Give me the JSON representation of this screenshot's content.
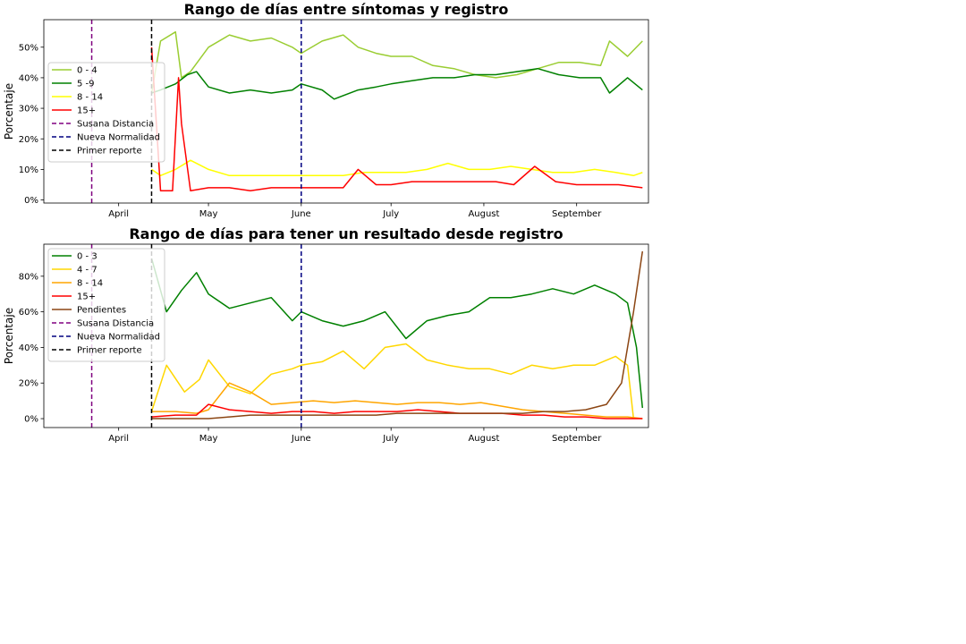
{
  "chart_data": [
    {
      "type": "line",
      "title": "Rango de días entre síntomas y registro",
      "ylabel": "Porcentaje",
      "xlabel": "",
      "x_range": [
        "2020-03-07",
        "2020-09-25"
      ],
      "ylim": [
        -1,
        59
      ],
      "yticks": [
        0,
        10,
        20,
        30,
        40,
        50
      ],
      "ytick_labels": [
        "0%",
        "10%",
        "20%",
        "30%",
        "40%",
        "50%"
      ],
      "xticks": [
        "2020-04-01",
        "2020-05-01",
        "2020-06-01",
        "2020-07-01",
        "2020-08-01",
        "2020-09-01"
      ],
      "xtick_labels": [
        "April",
        "May",
        "June",
        "July",
        "August",
        "September"
      ],
      "legend_position": "upper-left",
      "grid": false,
      "series": [
        {
          "name": "0 - 4",
          "color": "#9acd32",
          "x": [
            "2020-04-12",
            "2020-04-15",
            "2020-04-20",
            "2020-04-22",
            "2020-04-25",
            "2020-05-01",
            "2020-05-08",
            "2020-05-15",
            "2020-05-22",
            "2020-05-29",
            "2020-06-01",
            "2020-06-08",
            "2020-06-15",
            "2020-06-20",
            "2020-06-26",
            "2020-07-01",
            "2020-07-08",
            "2020-07-15",
            "2020-07-22",
            "2020-07-29",
            "2020-08-05",
            "2020-08-12",
            "2020-08-19",
            "2020-08-26",
            "2020-09-02",
            "2020-09-09",
            "2020-09-12",
            "2020-09-18",
            "2020-09-23"
          ],
          "y": [
            35,
            52,
            55,
            40,
            42,
            50,
            54,
            52,
            53,
            50,
            48,
            52,
            54,
            50,
            48,
            47,
            47,
            44,
            43,
            41,
            40,
            41,
            43,
            45,
            45,
            44,
            52,
            47,
            52
          ]
        },
        {
          "name": "5 -9",
          "color": "#008000",
          "x": [
            "2020-04-12",
            "2020-04-15",
            "2020-04-20",
            "2020-04-24",
            "2020-04-27",
            "2020-05-01",
            "2020-05-08",
            "2020-05-15",
            "2020-05-22",
            "2020-05-29",
            "2020-06-01",
            "2020-06-08",
            "2020-06-12",
            "2020-06-20",
            "2020-06-26",
            "2020-07-01",
            "2020-07-08",
            "2020-07-15",
            "2020-07-22",
            "2020-07-29",
            "2020-08-05",
            "2020-08-12",
            "2020-08-19",
            "2020-08-26",
            "2020-09-02",
            "2020-09-09",
            "2020-09-12",
            "2020-09-18",
            "2020-09-23"
          ],
          "y": [
            35,
            36,
            38,
            41,
            42,
            37,
            35,
            36,
            35,
            36,
            38,
            36,
            33,
            36,
            37,
            38,
            39,
            40,
            40,
            41,
            41,
            42,
            43,
            41,
            40,
            40,
            35,
            40,
            36
          ]
        },
        {
          "name": "8 - 14",
          "color": "#ffff00",
          "x": [
            "2020-04-12",
            "2020-04-15",
            "2020-04-20",
            "2020-04-25",
            "2020-05-01",
            "2020-05-08",
            "2020-05-15",
            "2020-05-22",
            "2020-05-29",
            "2020-06-01",
            "2020-06-08",
            "2020-06-15",
            "2020-06-22",
            "2020-06-29",
            "2020-07-06",
            "2020-07-13",
            "2020-07-20",
            "2020-07-27",
            "2020-08-03",
            "2020-08-10",
            "2020-08-17",
            "2020-08-24",
            "2020-08-31",
            "2020-09-07",
            "2020-09-14",
            "2020-09-20",
            "2020-09-23"
          ],
          "y": [
            10,
            8,
            10,
            13,
            10,
            8,
            8,
            8,
            8,
            8,
            8,
            8,
            9,
            9,
            9,
            10,
            12,
            10,
            10,
            11,
            10,
            9,
            9,
            10,
            9,
            8,
            9
          ]
        },
        {
          "name": "15+",
          "color": "#ff0000",
          "x": [
            "2020-04-12",
            "2020-04-15",
            "2020-04-19",
            "2020-04-21",
            "2020-04-22",
            "2020-04-25",
            "2020-05-01",
            "2020-05-08",
            "2020-05-15",
            "2020-05-22",
            "2020-05-29",
            "2020-06-01",
            "2020-06-08",
            "2020-06-15",
            "2020-06-20",
            "2020-06-26",
            "2020-07-01",
            "2020-07-08",
            "2020-07-15",
            "2020-07-22",
            "2020-07-29",
            "2020-08-05",
            "2020-08-11",
            "2020-08-18",
            "2020-08-25",
            "2020-09-01",
            "2020-09-08",
            "2020-09-15",
            "2020-09-23"
          ],
          "y": [
            50,
            3,
            3,
            40,
            25,
            3,
            4,
            4,
            3,
            4,
            4,
            4,
            4,
            4,
            10,
            5,
            5,
            6,
            6,
            6,
            6,
            6,
            5,
            11,
            6,
            5,
            5,
            5,
            4
          ]
        }
      ],
      "vlines": [
        {
          "name": "Susana Distancia",
          "color": "#800080",
          "x": "2020-03-23"
        },
        {
          "name": "Nueva Normalidad",
          "color": "#000080",
          "x": "2020-06-01"
        },
        {
          "name": "Primer reporte",
          "color": "#000000",
          "x": "2020-04-12"
        }
      ]
    },
    {
      "type": "line",
      "title": "Rango de días para tener un resultado desde registro",
      "ylabel": "Porcentaje",
      "xlabel": "",
      "x_range": [
        "2020-03-07",
        "2020-09-25"
      ],
      "ylim": [
        -5,
        98
      ],
      "yticks": [
        0,
        20,
        40,
        60,
        80
      ],
      "ytick_labels": [
        "0%",
        "20%",
        "40%",
        "60%",
        "80%"
      ],
      "xticks": [
        "2020-04-01",
        "2020-05-01",
        "2020-06-01",
        "2020-07-01",
        "2020-08-01",
        "2020-09-01"
      ],
      "xtick_labels": [
        "April",
        "May",
        "June",
        "July",
        "August",
        "September"
      ],
      "legend_position": "upper-left",
      "grid": false,
      "series": [
        {
          "name": "0 - 3",
          "color": "#008000",
          "x": [
            "2020-04-12",
            "2020-04-17",
            "2020-04-22",
            "2020-04-27",
            "2020-05-01",
            "2020-05-08",
            "2020-05-15",
            "2020-05-22",
            "2020-05-29",
            "2020-06-01",
            "2020-06-08",
            "2020-06-15",
            "2020-06-22",
            "2020-06-29",
            "2020-07-06",
            "2020-07-13",
            "2020-07-20",
            "2020-07-27",
            "2020-08-03",
            "2020-08-10",
            "2020-08-17",
            "2020-08-24",
            "2020-08-31",
            "2020-09-07",
            "2020-09-14",
            "2020-09-18",
            "2020-09-21",
            "2020-09-23"
          ],
          "y": [
            90,
            60,
            72,
            82,
            70,
            62,
            65,
            68,
            55,
            60,
            55,
            52,
            55,
            60,
            45,
            55,
            58,
            60,
            68,
            68,
            70,
            73,
            70,
            75,
            70,
            65,
            40,
            6
          ]
        },
        {
          "name": "4 - 7",
          "color": "#ffd700",
          "x": [
            "2020-04-12",
            "2020-04-17",
            "2020-04-23",
            "2020-04-28",
            "2020-05-01",
            "2020-05-08",
            "2020-05-15",
            "2020-05-22",
            "2020-05-29",
            "2020-06-01",
            "2020-06-08",
            "2020-06-15",
            "2020-06-22",
            "2020-06-29",
            "2020-07-06",
            "2020-07-13",
            "2020-07-20",
            "2020-07-27",
            "2020-08-03",
            "2020-08-10",
            "2020-08-17",
            "2020-08-24",
            "2020-08-31",
            "2020-09-07",
            "2020-09-14",
            "2020-09-18",
            "2020-09-20"
          ],
          "y": [
            4,
            30,
            15,
            22,
            33,
            18,
            14,
            25,
            28,
            30,
            32,
            38,
            28,
            40,
            42,
            33,
            30,
            28,
            28,
            25,
            30,
            28,
            30,
            30,
            35,
            30,
            0
          ]
        },
        {
          "name": "8 - 14",
          "color": "#ffa500",
          "x": [
            "2020-04-12",
            "2020-04-20",
            "2020-04-27",
            "2020-05-01",
            "2020-05-08",
            "2020-05-15",
            "2020-05-22",
            "2020-05-29",
            "2020-06-05",
            "2020-06-12",
            "2020-06-19",
            "2020-06-26",
            "2020-07-03",
            "2020-07-10",
            "2020-07-17",
            "2020-07-24",
            "2020-07-31",
            "2020-08-07",
            "2020-08-14",
            "2020-08-21",
            "2020-08-28",
            "2020-09-04",
            "2020-09-11",
            "2020-09-18",
            "2020-09-23"
          ],
          "y": [
            4,
            4,
            3,
            5,
            20,
            15,
            8,
            9,
            10,
            9,
            10,
            9,
            8,
            9,
            9,
            8,
            9,
            7,
            5,
            4,
            3,
            2,
            1,
            1,
            0
          ]
        },
        {
          "name": "15+",
          "color": "#ff0000",
          "x": [
            "2020-04-12",
            "2020-04-20",
            "2020-04-27",
            "2020-05-01",
            "2020-05-08",
            "2020-05-15",
            "2020-05-22",
            "2020-05-29",
            "2020-06-05",
            "2020-06-12",
            "2020-06-19",
            "2020-06-26",
            "2020-07-03",
            "2020-07-10",
            "2020-07-17",
            "2020-07-24",
            "2020-07-31",
            "2020-08-07",
            "2020-08-14",
            "2020-08-21",
            "2020-08-28",
            "2020-09-04",
            "2020-09-11",
            "2020-09-18",
            "2020-09-23"
          ],
          "y": [
            1,
            2,
            2,
            8,
            5,
            4,
            3,
            4,
            4,
            3,
            4,
            4,
            4,
            5,
            4,
            3,
            3,
            3,
            2,
            2,
            1,
            1,
            0,
            0,
            0
          ]
        },
        {
          "name": "Pendientes",
          "color": "#8b4513",
          "x": [
            "2020-04-12",
            "2020-04-20",
            "2020-04-27",
            "2020-05-01",
            "2020-05-08",
            "2020-05-15",
            "2020-05-22",
            "2020-05-29",
            "2020-06-05",
            "2020-06-12",
            "2020-06-19",
            "2020-06-26",
            "2020-07-03",
            "2020-07-10",
            "2020-07-17",
            "2020-07-24",
            "2020-07-31",
            "2020-08-07",
            "2020-08-14",
            "2020-08-21",
            "2020-08-28",
            "2020-09-04",
            "2020-09-11",
            "2020-09-16",
            "2020-09-20",
            "2020-09-23"
          ],
          "y": [
            0,
            0,
            0,
            0,
            1,
            2,
            2,
            2,
            2,
            2,
            2,
            2,
            3,
            3,
            3,
            3,
            3,
            3,
            3,
            4,
            4,
            5,
            8,
            20,
            60,
            94
          ]
        }
      ],
      "vlines": [
        {
          "name": "Susana Distancia",
          "color": "#800080",
          "x": "2020-03-23"
        },
        {
          "name": "Nueva Normalidad",
          "color": "#000080",
          "x": "2020-06-01"
        },
        {
          "name": "Primer reporte",
          "color": "#000000",
          "x": "2020-04-12"
        }
      ]
    }
  ]
}
